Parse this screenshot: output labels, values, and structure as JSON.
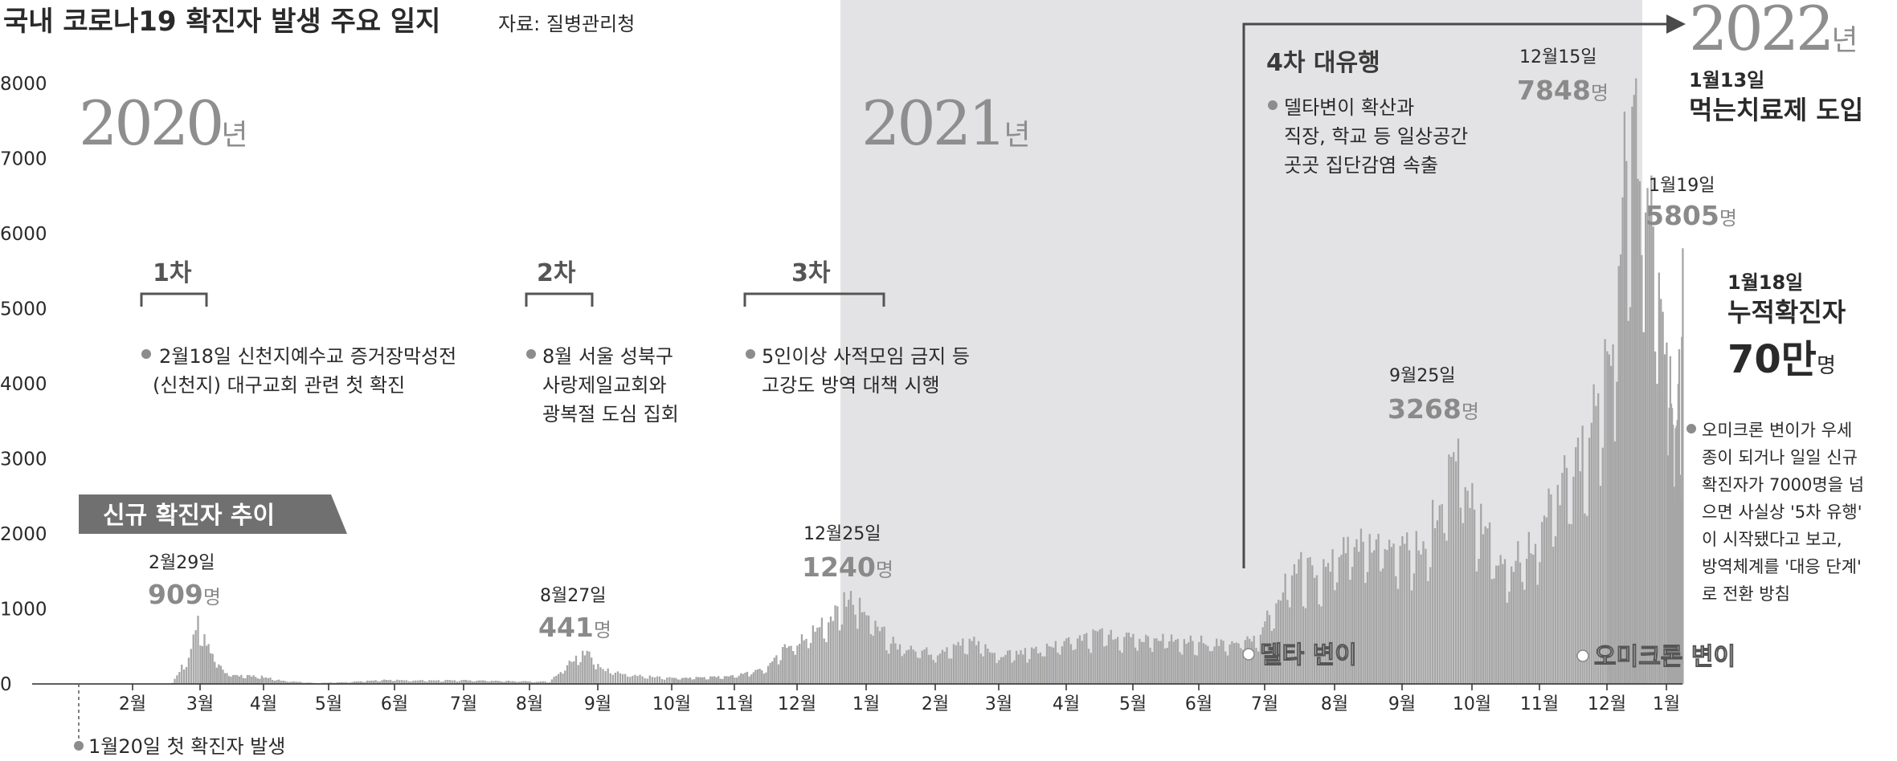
{
  "header": {
    "title": "국내 코로나19 확진자 발생 주요 일지",
    "source": "자료: 질병관리청"
  },
  "colors": {
    "bars": "#a6a6a6",
    "shade_2021": "#e3e3e5",
    "ink": "#2a2a2a",
    "muted_year": "#8e8e8e",
    "marker": "#8c8c8c"
  },
  "years": {
    "y2020": "2020",
    "y2021": "2021",
    "y2022": "2022",
    "suffix": "년"
  },
  "legend_tag": "신규 확진자 추이",
  "waves": {
    "w1": "1차",
    "w2": "2차",
    "w3": "3차",
    "w4_title": "4차 대유행",
    "w4_text": [
      "델타변이 확산과",
      "직장, 학교 등 일상공간",
      "곳곳 집단감염 속출"
    ]
  },
  "events": {
    "first_case": "1월20일 첫 확진자 발생",
    "shincheonji": [
      "2월18일 신천지예수교 증거장막성전",
      "(신천지) 대구교회 관련 첫 확진"
    ],
    "seongbuk": [
      "8월 서울 성북구",
      "사랑제일교회와",
      "광복절 도심 집회"
    ],
    "third": [
      "5인이상 사적모임 금지 등",
      "고강도 방역 대책 시행"
    ],
    "delta": "델타 변이",
    "omicron": "오미크론 변이",
    "pill_date": "1월13일",
    "pill_text": "먹는치료제 도입",
    "cum_date": "1월18일",
    "cum_text": "누적확진자",
    "cum_num": "70만",
    "cum_unit": "명",
    "omicron_note": [
      "오미크론 변이가 우세",
      "종이 되거나 일일 신규",
      "확진자가 7000명을 넘",
      "으면 사실상 '5차 유행'",
      "이 시작됐다고 보고,",
      "방역체계를 '대응 단계'",
      "로 전환 방침"
    ]
  },
  "peaks": [
    {
      "date": "2월29일",
      "value": "909",
      "unit": "명"
    },
    {
      "date": "8월27일",
      "value": "441",
      "unit": "명"
    },
    {
      "date": "12월25일",
      "value": "1240",
      "unit": "명"
    },
    {
      "date": "9월25일",
      "value": "3268",
      "unit": "명"
    },
    {
      "date": "12월15일",
      "value": "7848",
      "unit": "명"
    },
    {
      "date": "1월19일",
      "value": "5805",
      "unit": "명"
    }
  ],
  "chart_data": {
    "type": "bar",
    "title": "국내 코로나19 확진자 발생 주요 일지",
    "series_label": "신규 확진자 추이",
    "ylim": [
      0,
      8000
    ],
    "y_ticks": [
      "0",
      "1000",
      "2000",
      "3000",
      "4000",
      "5000",
      "6000",
      "7000",
      "8000"
    ],
    "x_ticks": [
      "2월",
      "3월",
      "4월",
      "5월",
      "6월",
      "7월",
      "8월",
      "9월",
      "10월",
      "11월",
      "12월",
      "1월",
      "2월",
      "3월",
      "4월",
      "5월",
      "6월",
      "7월",
      "8월",
      "9월",
      "10월",
      "11월",
      "12월",
      "1월"
    ],
    "x_tick_dates": [
      "2020-02-01",
      "2020-03-01",
      "2020-04-01",
      "2020-05-01",
      "2020-06-01",
      "2020-07-01",
      "2020-08-01",
      "2020-09-01",
      "2020-10-01",
      "2020-11-01",
      "2020-12-01",
      "2021-01-01",
      "2021-02-01",
      "2021-03-01",
      "2021-04-01",
      "2021-05-01",
      "2021-06-01",
      "2021-07-01",
      "2021-08-01",
      "2021-09-01",
      "2021-10-01",
      "2021-11-01",
      "2021-12-01",
      "2022-01-01"
    ],
    "x_range": [
      "2020-01-20",
      "2022-01-19"
    ],
    "shaded_period": [
      "2021-01-01",
      "2021-12-31"
    ],
    "grid": false,
    "daily_new_cases_estimated": [
      [
        "2020-01-20",
        0
      ],
      [
        "2020-02-15",
        2
      ],
      [
        "2020-02-18",
        15
      ],
      [
        "2020-02-22",
        230
      ],
      [
        "2020-02-26",
        450
      ],
      [
        "2020-02-29",
        909
      ],
      [
        "2020-03-03",
        600
      ],
      [
        "2020-03-08",
        370
      ],
      [
        "2020-03-12",
        170
      ],
      [
        "2020-03-20",
        110
      ],
      [
        "2020-03-31",
        100
      ],
      [
        "2020-04-10",
        40
      ],
      [
        "2020-04-25",
        12
      ],
      [
        "2020-05-10",
        25
      ],
      [
        "2020-05-28",
        55
      ],
      [
        "2020-06-15",
        45
      ],
      [
        "2020-07-01",
        50
      ],
      [
        "2020-07-20",
        40
      ],
      [
        "2020-08-10",
        30
      ],
      [
        "2020-08-16",
        200
      ],
      [
        "2020-08-22",
        360
      ],
      [
        "2020-08-27",
        441
      ],
      [
        "2020-09-03",
        200
      ],
      [
        "2020-09-15",
        120
      ],
      [
        "2020-10-01",
        80
      ],
      [
        "2020-10-20",
        90
      ],
      [
        "2020-11-01",
        110
      ],
      [
        "2020-11-15",
        200
      ],
      [
        "2020-11-25",
        500
      ],
      [
        "2020-12-05",
        630
      ],
      [
        "2020-12-15",
        880
      ],
      [
        "2020-12-25",
        1240
      ],
      [
        "2021-01-03",
        850
      ],
      [
        "2021-01-15",
        520
      ],
      [
        "2021-02-01",
        420
      ],
      [
        "2021-02-18",
        600
      ],
      [
        "2021-03-01",
        400
      ],
      [
        "2021-03-20",
        460
      ],
      [
        "2021-04-01",
        550
      ],
      [
        "2021-04-15",
        680
      ],
      [
        "2021-05-01",
        620
      ],
      [
        "2021-05-20",
        600
      ],
      [
        "2021-06-10",
        560
      ],
      [
        "2021-06-28",
        620
      ],
      [
        "2021-07-07",
        1200
      ],
      [
        "2021-07-15",
        1600
      ],
      [
        "2021-07-25",
        1500
      ],
      [
        "2021-08-10",
        2000
      ],
      [
        "2021-08-25",
        1900
      ],
      [
        "2021-09-10",
        1900
      ],
      [
        "2021-09-25",
        3268
      ],
      [
        "2021-10-01",
        2500
      ],
      [
        "2021-10-15",
        1500
      ],
      [
        "2021-10-31",
        2000
      ],
      [
        "2021-11-05",
        2400
      ],
      [
        "2021-11-20",
        3200
      ],
      [
        "2021-11-28",
        4000
      ],
      [
        "2021-12-05",
        5000
      ],
      [
        "2021-12-10",
        7100
      ],
      [
        "2021-12-15",
        7848
      ],
      [
        "2021-12-22",
        6900
      ],
      [
        "2021-12-28",
        5000
      ],
      [
        "2022-01-01",
        4400
      ],
      [
        "2022-01-06",
        3800
      ],
      [
        "2022-01-10",
        3100
      ],
      [
        "2022-01-15",
        4200
      ],
      [
        "2022-01-17",
        3800
      ],
      [
        "2022-01-19",
        5805
      ]
    ]
  }
}
